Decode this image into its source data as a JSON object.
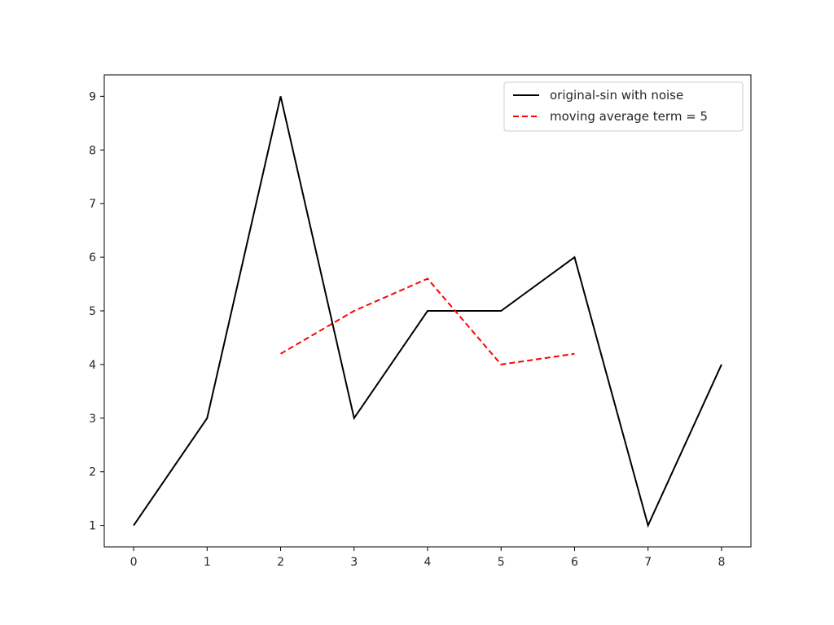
{
  "chart_data": {
    "type": "line",
    "title": "",
    "xlabel": "",
    "ylabel": "",
    "xlim": [
      -0.4,
      8.4
    ],
    "ylim": [
      0.6,
      9.4
    ],
    "x_ticks": [
      0,
      1,
      2,
      3,
      4,
      5,
      6,
      7,
      8
    ],
    "y_ticks": [
      1,
      2,
      3,
      4,
      5,
      6,
      7,
      8,
      9
    ],
    "grid": false,
    "legend_position": "top-right",
    "series": [
      {
        "name": "original-sin with noise",
        "color": "#000000",
        "line_style": "solid",
        "x": [
          0,
          1,
          2,
          3,
          4,
          5,
          6,
          7,
          8
        ],
        "y": [
          1,
          3,
          9,
          3,
          5,
          5,
          6,
          1,
          4
        ]
      },
      {
        "name": "moving average term = 5",
        "color": "#ff0000",
        "line_style": "dashed",
        "x": [
          2,
          3,
          4,
          5,
          6
        ],
        "y": [
          4.2,
          5.0,
          5.6,
          4.0,
          4.2
        ]
      }
    ]
  }
}
